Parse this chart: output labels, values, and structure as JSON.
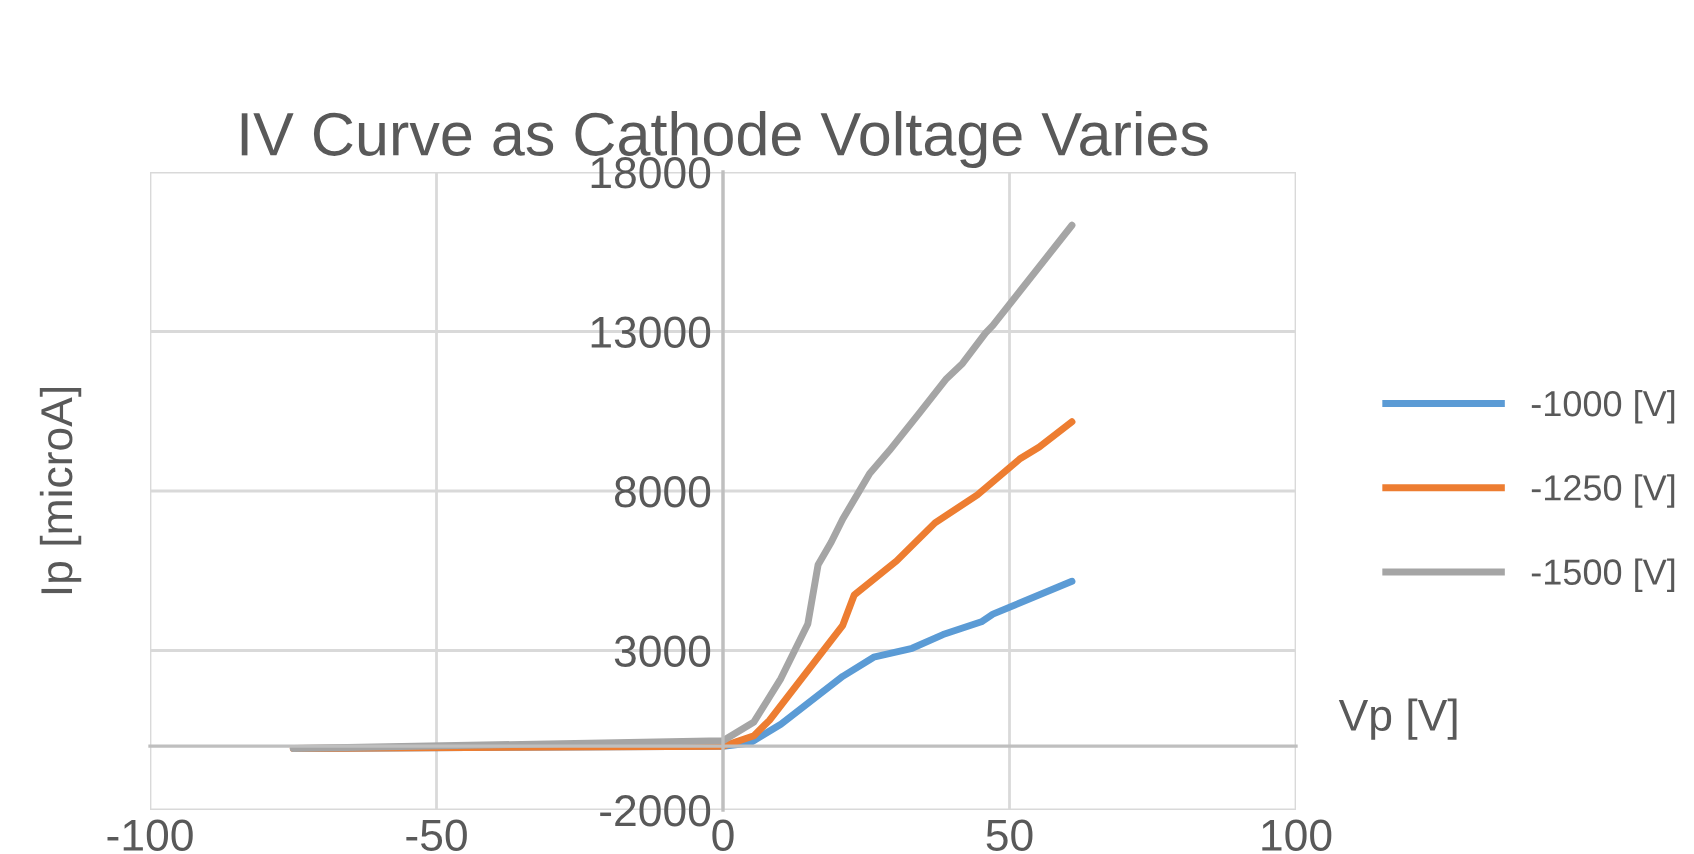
{
  "chart_data": {
    "type": "line",
    "title": "IV Curve as Cathode Voltage Varies",
    "xlabel": "Vp [V]",
    "ylabel": "Ip [microA]",
    "xlim": [
      -100,
      100
    ],
    "xticks": [
      -100,
      -50,
      0,
      50,
      100
    ],
    "ylim": [
      -2000,
      18000
    ],
    "yticks": [
      -2000,
      3000,
      8000,
      13000,
      18000
    ],
    "grid": true,
    "legend": "right",
    "marker": "none",
    "line_style": "solid",
    "series": [
      {
        "name": "-1000 [V]",
        "color": "#5b9bd5",
        "x": [
          -74,
          0,
          4.7,
          10.1,
          20.9,
          26.3,
          33,
          38.4,
          45.1,
          47.1,
          60.9
        ],
        "values": [
          -70,
          0,
          100,
          690,
          2190,
          2790,
          3070,
          3500,
          3900,
          4140,
          5170
        ]
      },
      {
        "name": "-1250 [V]",
        "color": "#ed7d31",
        "x": [
          -75,
          0,
          5.4,
          8.1,
          20.9,
          22.9,
          30.3,
          37,
          44.4,
          51.9,
          55.2,
          60.9
        ],
        "values": [
          -70,
          0,
          330,
          810,
          3790,
          4740,
          5810,
          7000,
          7880,
          9020,
          9380,
          10170
        ]
      },
      {
        "name": "-1500 [V]",
        "color": "#a5a5a5",
        "x": [
          -75,
          0,
          5.4,
          10.1,
          14.8,
          16.6,
          18.9,
          20.9,
          25.6,
          29,
          34.3,
          39,
          41.8,
          45.8,
          47.1,
          60.9
        ],
        "values": [
          -70,
          170,
          760,
          2120,
          3830,
          5690,
          6400,
          7120,
          8550,
          9260,
          10450,
          11520,
          12000,
          12950,
          13190,
          16330
        ]
      }
    ]
  }
}
